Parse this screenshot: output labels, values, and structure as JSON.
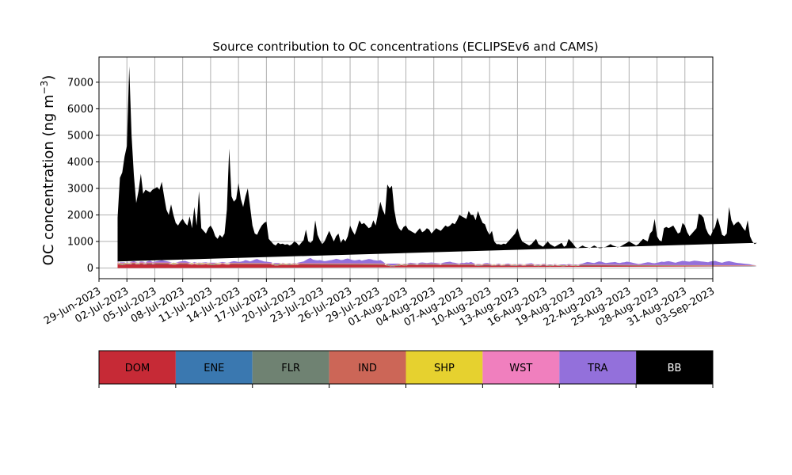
{
  "chart_data": {
    "type": "area",
    "title": "Source contribution to OC concentrations (ECLIPSEv6 and CAMS)",
    "ylabel": "OC concentration (ng m",
    "ylabel_sup": "−3",
    "ylabel_close": ")",
    "ylim": [
      -400,
      7950
    ],
    "yticks": [
      0,
      1000,
      2000,
      3000,
      4000,
      5000,
      6000,
      7000
    ],
    "ytick_labels": [
      "0",
      "1000",
      "2000",
      "3000",
      "4000",
      "5000",
      "6000",
      "7000"
    ],
    "xlim": [
      "2023-06-29",
      "2023-09-03"
    ],
    "xtick_labels": [
      "29-Jun-2023",
      "02-Jul-2023",
      "05-Jul-2023",
      "08-Jul-2023",
      "11-Jul-2023",
      "14-Jul-2023",
      "17-Jul-2023",
      "20-Jul-2023",
      "23-Jul-2023",
      "26-Jul-2023",
      "29-Jul-2023",
      "01-Aug-2023",
      "04-Aug-2023",
      "07-Aug-2023",
      "10-Aug-2023",
      "13-Aug-2023",
      "16-Aug-2023",
      "19-Aug-2023",
      "22-Aug-2023",
      "25-Aug-2023",
      "28-Aug-2023",
      "31-Aug-2023",
      "03-Sep-2023"
    ],
    "grid": true,
    "series_start": "2023-07-01",
    "step_days": 0.25,
    "total": [
      1900,
      3400,
      3600,
      4200,
      4600,
      7600,
      5000,
      3500,
      2450,
      2900,
      3550,
      2800,
      2950,
      2900,
      2850,
      2950,
      3000,
      3050,
      2950,
      3250,
      2700,
      2200,
      2000,
      2400,
      2000,
      1700,
      1600,
      1750,
      1850,
      1700,
      1600,
      1950,
      1500,
      2300,
      1600,
      2900,
      1500,
      1400,
      1300,
      1500,
      1600,
      1450,
      1200,
      1100,
      1250,
      1150,
      1300,
      2200,
      4500,
      2700,
      2500,
      2600,
      3200,
      2600,
      2300,
      2700,
      3000,
      2300,
      1600,
      1300,
      1250,
      1450,
      1600,
      1700,
      1750,
      1100,
      1000,
      900,
      850,
      950,
      900,
      920,
      880,
      900,
      850,
      900,
      1000,
      950,
      850,
      950,
      1050,
      1450,
      1000,
      950,
      1050,
      1800,
      1250,
      1050,
      900,
      1000,
      1200,
      1400,
      1200,
      1000,
      1200,
      1300,
      950,
      1100,
      1000,
      1200,
      1600,
      1400,
      1250,
      1500,
      1800,
      1650,
      1700,
      1600,
      1500,
      1550,
      1800,
      1600,
      2050,
      2500,
      2200,
      2000,
      3150,
      3000,
      3100,
      2200,
      1700,
      1500,
      1400,
      1550,
      1600,
      1450,
      1400,
      1350,
      1300,
      1400,
      1500,
      1350,
      1400,
      1500,
      1450,
      1300,
      1400,
      1500,
      1450,
      1400,
      1500,
      1600,
      1550,
      1600,
      1700,
      1650,
      1800,
      2000,
      1950,
      1900,
      1850,
      2150,
      2000,
      2000,
      1800,
      2150,
      1900,
      1700,
      1650,
      1400,
      1250,
      1400,
      1000,
      900,
      900,
      880,
      920,
      900,
      1000,
      1100,
      1200,
      1300,
      1500,
      1200,
      1000,
      950,
      900,
      850,
      900,
      1000,
      1100,
      900,
      850,
      800,
      900,
      1000,
      900,
      850,
      800,
      850,
      900,
      950,
      800,
      850,
      1100,
      1000,
      900,
      780,
      750,
      800,
      850,
      800,
      780,
      750,
      800,
      850,
      800,
      750,
      750,
      780,
      800,
      850,
      900,
      850,
      820,
      780,
      800,
      850,
      900,
      950,
      1000,
      950,
      900,
      850,
      900,
      1000,
      1100,
      1050,
      1000,
      1300,
      1400,
      1850,
      1200,
      1050,
      1000,
      1500,
      1550,
      1500,
      1550,
      1600,
      1450,
      1300,
      1350,
      1700,
      1600,
      1350,
      1200,
      1300,
      1400,
      1500,
      2050,
      2000,
      1900,
      1500,
      1300,
      1200,
      1400,
      1550,
      1900,
      1600,
      1250,
      1200,
      1300,
      2300,
      1800,
      1600,
      1700,
      1750,
      1650,
      1500,
      1400,
      1800,
      1200,
      1000,
      900,
      950,
      1050,
      1000,
      900,
      800,
      700,
      750,
      850,
      800,
      850,
      700,
      720
    ],
    "base": [
      250,
      200,
      180,
      200,
      230,
      220,
      240,
      260,
      230,
      220,
      250,
      240,
      220,
      260,
      280,
      230,
      240,
      260,
      280,
      300,
      280,
      260,
      240,
      220,
      200,
      210,
      230,
      250,
      260,
      270,
      240,
      220,
      200,
      230,
      210,
      190,
      200,
      210,
      220,
      200,
      180,
      170,
      190,
      200,
      210,
      230,
      220,
      200,
      210,
      240,
      260,
      250,
      230,
      240,
      260,
      300,
      280,
      250,
      280,
      320,
      340,
      300,
      280,
      250,
      240,
      230,
      220,
      180,
      150,
      160,
      180,
      200,
      190,
      180,
      170,
      190,
      200,
      190,
      210,
      230,
      250,
      300,
      350,
      380,
      320,
      300,
      290,
      300,
      280,
      260,
      270,
      290,
      300,
      320,
      350,
      330,
      300,
      310,
      340,
      360,
      330,
      300,
      290,
      300,
      320,
      280,
      300,
      320,
      340,
      330,
      300,
      290,
      280,
      300,
      250,
      180,
      150,
      120,
      100,
      110,
      130,
      150,
      170,
      160,
      150,
      180,
      200,
      190,
      180,
      170,
      200,
      210,
      200,
      190,
      200,
      210,
      200,
      190,
      180,
      170,
      200,
      220,
      230,
      240,
      210,
      200,
      180,
      170,
      200,
      190,
      210,
      200,
      230,
      190,
      150,
      130,
      140,
      160,
      180,
      190,
      170,
      150,
      140,
      160,
      170,
      150,
      140,
      160,
      170,
      150,
      140,
      130,
      150,
      160,
      150,
      140,
      160,
      170,
      180,
      150,
      130,
      120,
      140,
      160,
      150,
      130,
      120,
      130,
      150,
      140,
      130,
      120,
      110,
      130,
      150,
      140,
      130,
      120,
      130,
      150,
      170,
      200,
      230,
      220,
      200,
      190,
      220,
      250,
      240,
      210,
      190,
      200,
      210,
      220,
      230,
      200,
      190,
      210,
      220,
      240,
      230,
      210,
      190,
      170,
      150,
      160,
      180,
      200,
      220,
      210,
      190,
      180,
      200,
      220,
      240,
      230,
      250,
      260,
      240,
      220,
      200,
      230,
      250,
      270,
      260,
      250,
      240,
      260,
      280,
      270,
      260,
      250,
      240,
      230,
      220,
      250,
      260,
      270,
      240,
      220,
      200,
      230,
      250,
      260,
      240,
      220,
      200,
      190,
      180,
      170,
      160,
      150,
      140,
      120,
      110,
      100
    ],
    "source_order": [
      "DOM",
      "ENE",
      "FLR",
      "IND",
      "SHP",
      "WST",
      "TRA",
      "BB"
    ],
    "source_fraction_of_base": {
      "DOM": 0.62,
      "ENE": 0.04,
      "FLR": 0.02,
      "IND": 0.1,
      "SHP": 0.02,
      "WST": 0.08,
      "TRA": 0.12
    },
    "legend": [
      {
        "label": "DOM",
        "color": "#c62a36",
        "text_color": "#000000"
      },
      {
        "label": "ENE",
        "color": "#3a78b0",
        "text_color": "#000000"
      },
      {
        "label": "FLR",
        "color": "#6f8272",
        "text_color": "#000000"
      },
      {
        "label": "IND",
        "color": "#cc6657",
        "text_color": "#000000"
      },
      {
        "label": "SHP",
        "color": "#e6d12f",
        "text_color": "#000000"
      },
      {
        "label": "WST",
        "color": "#f07fbe",
        "text_color": "#000000"
      },
      {
        "label": "TRA",
        "color": "#9370db",
        "text_color": "#000000"
      },
      {
        "label": "BB",
        "color": "#000000",
        "text_color": "#ffffff"
      }
    ]
  }
}
